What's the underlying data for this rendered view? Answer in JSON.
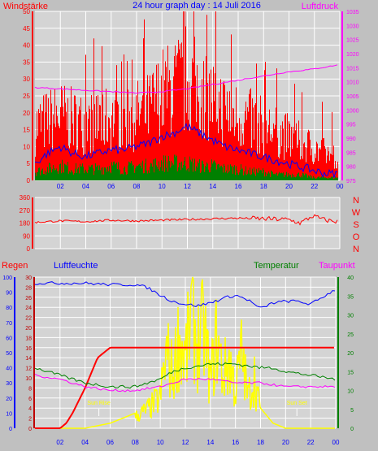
{
  "title": "24 hour graph day : 14 Juli 2016",
  "colors": {
    "background": "#c0c0c0",
    "plot_bg": "#d4d4d4",
    "grid": "#ffffff",
    "red": "#ff0000",
    "blue": "#0000ff",
    "green": "#008000",
    "magenta": "#ff00ff",
    "yellow": "#ffff00",
    "dark_red": "#c00000"
  },
  "chart_data": [
    {
      "type": "line",
      "id": "wind-pressure",
      "title": "24 hour graph day : 14 Juli 2016",
      "left_label": "Windstärke",
      "right_label": "Luftdruck",
      "x_ticks": [
        "02",
        "04",
        "06",
        "08",
        "10",
        "12",
        "14",
        "16",
        "18",
        "20",
        "22",
        "00"
      ],
      "y_left_ticks": [
        0,
        5,
        10,
        15,
        20,
        25,
        30,
        35,
        40,
        45,
        50
      ],
      "y_left_range": [
        0,
        50
      ],
      "y_right_ticks": [
        975,
        980,
        985,
        990,
        995,
        1000,
        1005,
        1010,
        1015,
        1020,
        1025,
        1030,
        1035
      ],
      "y_right_range": [
        975,
        1035
      ],
      "x_range": [
        0,
        24
      ],
      "series": [
        {
          "color": "red",
          "axis": "left",
          "x": [
            0,
            1,
            2,
            3,
            4,
            5,
            6,
            7,
            8,
            9,
            10,
            11,
            12,
            13,
            14,
            15,
            16,
            17,
            18,
            19,
            20,
            21,
            22,
            23,
            24
          ],
          "values": [
            20,
            22,
            24,
            22,
            21,
            22,
            23,
            22,
            24,
            26,
            32,
            34,
            38,
            33,
            30,
            26,
            24,
            22,
            20,
            18,
            16,
            14,
            12,
            10,
            8
          ]
        },
        {
          "color": "blue",
          "axis": "left",
          "x": [
            0,
            1,
            2,
            3,
            4,
            5,
            6,
            7,
            8,
            9,
            10,
            11,
            12,
            13,
            14,
            15,
            16,
            17,
            18,
            19,
            20,
            21,
            22,
            23,
            24
          ],
          "values": [
            5,
            8,
            10,
            8,
            7,
            8,
            9,
            9,
            10,
            11,
            13,
            14,
            16,
            14,
            12,
            10,
            9,
            8,
            7,
            6,
            5,
            4,
            3,
            2,
            2
          ]
        },
        {
          "color": "green",
          "axis": "left",
          "x": [
            0,
            1,
            2,
            3,
            4,
            5,
            6,
            7,
            8,
            9,
            10,
            11,
            12,
            13,
            14,
            15,
            16,
            17,
            18,
            19,
            20,
            21,
            22,
            23,
            24
          ],
          "values": [
            3,
            4,
            5,
            4,
            4,
            4,
            5,
            4,
            5,
            5,
            6,
            6,
            6,
            5,
            5,
            4,
            4,
            3,
            3,
            2,
            2,
            2,
            1,
            1,
            1
          ]
        },
        {
          "color": "magenta",
          "axis": "right",
          "x": [
            0,
            2,
            4,
            6,
            8,
            10,
            12,
            14,
            16,
            18,
            20,
            22,
            24
          ],
          "values": [
            1008,
            1007.5,
            1007,
            1006.5,
            1006,
            1006.5,
            1007.5,
            1009,
            1010.5,
            1012,
            1013.5,
            1014.5,
            1016
          ]
        }
      ]
    },
    {
      "type": "line",
      "id": "wind-direction",
      "right_labels": [
        "N",
        "W",
        "S",
        "O",
        "N"
      ],
      "y_ticks": [
        0,
        90,
        180,
        270,
        360
      ],
      "y_range": [
        0,
        360
      ],
      "x_range": [
        0,
        24
      ],
      "series": [
        {
          "color": "red",
          "x": [
            0,
            2,
            4,
            6,
            8,
            10,
            12,
            14,
            16,
            18,
            20,
            21,
            22,
            23,
            24
          ],
          "values": [
            185,
            195,
            190,
            200,
            195,
            200,
            205,
            210,
            215,
            210,
            205,
            180,
            230,
            200,
            190
          ]
        }
      ]
    },
    {
      "type": "line",
      "id": "rain-humidity-temp",
      "labels": {
        "rain": "Regen",
        "humidity": "Luftfeuchte",
        "temperature": "Temperatur",
        "dewpoint": "Taupunkt"
      },
      "annotations": [
        "Sun Rise",
        "Sun Set"
      ],
      "x_ticks": [
        "02",
        "04",
        "06",
        "08",
        "10",
        "12",
        "14",
        "16",
        "18",
        "20",
        "22",
        "00"
      ],
      "humidity_ticks": [
        0,
        10,
        20,
        30,
        40,
        50,
        60,
        70,
        80,
        90,
        100
      ],
      "rain_ticks": [
        0,
        2,
        4,
        6,
        8,
        10,
        12,
        14,
        16,
        18,
        20,
        22,
        24,
        26,
        28,
        30
      ],
      "temp_ticks": [
        0,
        5,
        10,
        15,
        20,
        25,
        30,
        35,
        40
      ],
      "x_range": [
        0,
        24
      ],
      "series": [
        {
          "name": "Regen",
          "color": "red",
          "axis": "rain",
          "x": [
            0,
            1,
            2,
            2.5,
            3,
            4,
            5,
            6,
            7,
            8,
            10,
            12,
            14,
            16,
            18,
            20,
            22,
            24
          ],
          "values": [
            0,
            0,
            0,
            1,
            3,
            8,
            14,
            16,
            16,
            16,
            16,
            16,
            16,
            16,
            16,
            16,
            16,
            16
          ]
        },
        {
          "name": "Luftfeuchte",
          "color": "blue",
          "axis": "humidity",
          "x": [
            0,
            2,
            4,
            6,
            8,
            9,
            10,
            11,
            12,
            13,
            14,
            15,
            16,
            17,
            18,
            19,
            20,
            21,
            22,
            23,
            24
          ],
          "values": [
            96,
            96,
            96,
            95,
            95,
            93,
            88,
            84,
            82,
            81,
            83,
            86,
            88,
            85,
            79,
            83,
            84,
            84,
            82,
            87,
            92
          ]
        },
        {
          "name": "Temperatur",
          "color": "green",
          "axis": "temperature",
          "x": [
            0,
            2,
            4,
            6,
            8,
            10,
            11,
            12,
            14,
            16,
            18,
            19,
            20,
            22,
            24
          ],
          "values": [
            16,
            14,
            12,
            11,
            11,
            13,
            15,
            16,
            17,
            17,
            16,
            16,
            15,
            14,
            13
          ]
        },
        {
          "name": "Taupunkt",
          "color": "magenta",
          "axis": "temperature",
          "x": [
            0,
            2,
            4,
            6,
            8,
            10,
            12,
            14,
            16,
            18,
            20,
            22,
            24
          ],
          "values": [
            14,
            13,
            11,
            10,
            10,
            11,
            13,
            13,
            12,
            12,
            11,
            11,
            11
          ]
        },
        {
          "color": "yellow",
          "axis": "rain",
          "x": [
            0,
            4,
            5,
            6,
            7,
            8,
            9,
            10,
            10.5,
            11,
            11.5,
            12,
            12.5,
            13,
            13.5,
            14,
            14.5,
            15,
            15.5,
            16,
            16.5,
            17,
            17.5,
            18,
            19,
            20,
            24
          ],
          "values": [
            0,
            0,
            0.5,
            1,
            2,
            3,
            5,
            8,
            20,
            14,
            24,
            18,
            30,
            22,
            26,
            12,
            24,
            14,
            18,
            10,
            20,
            8,
            14,
            4,
            1,
            0,
            0
          ]
        }
      ]
    }
  ]
}
